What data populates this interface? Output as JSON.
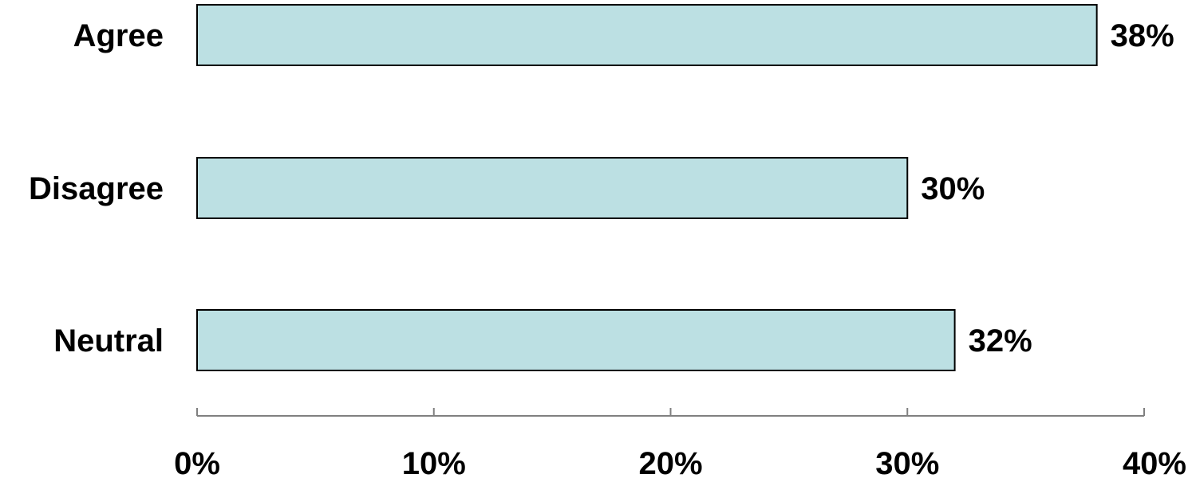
{
  "chart_data": {
    "type": "bar",
    "orientation": "horizontal",
    "categories": [
      "Agree",
      "Disagree",
      "Neutral"
    ],
    "values": [
      38,
      30,
      32
    ],
    "value_labels": [
      "38%",
      "30%",
      "32%"
    ],
    "xlim": [
      0,
      40
    ],
    "x_ticks": [
      0,
      10,
      20,
      30,
      40
    ],
    "x_tick_labels": [
      "0%",
      "10%",
      "20%",
      "30%",
      "40%"
    ],
    "title": "",
    "xlabel": "",
    "ylabel": "",
    "grid": false,
    "legend": "none",
    "bar_color": "#bce0e3",
    "bar_edge_color": "#000000",
    "axis_color": "#808080"
  }
}
